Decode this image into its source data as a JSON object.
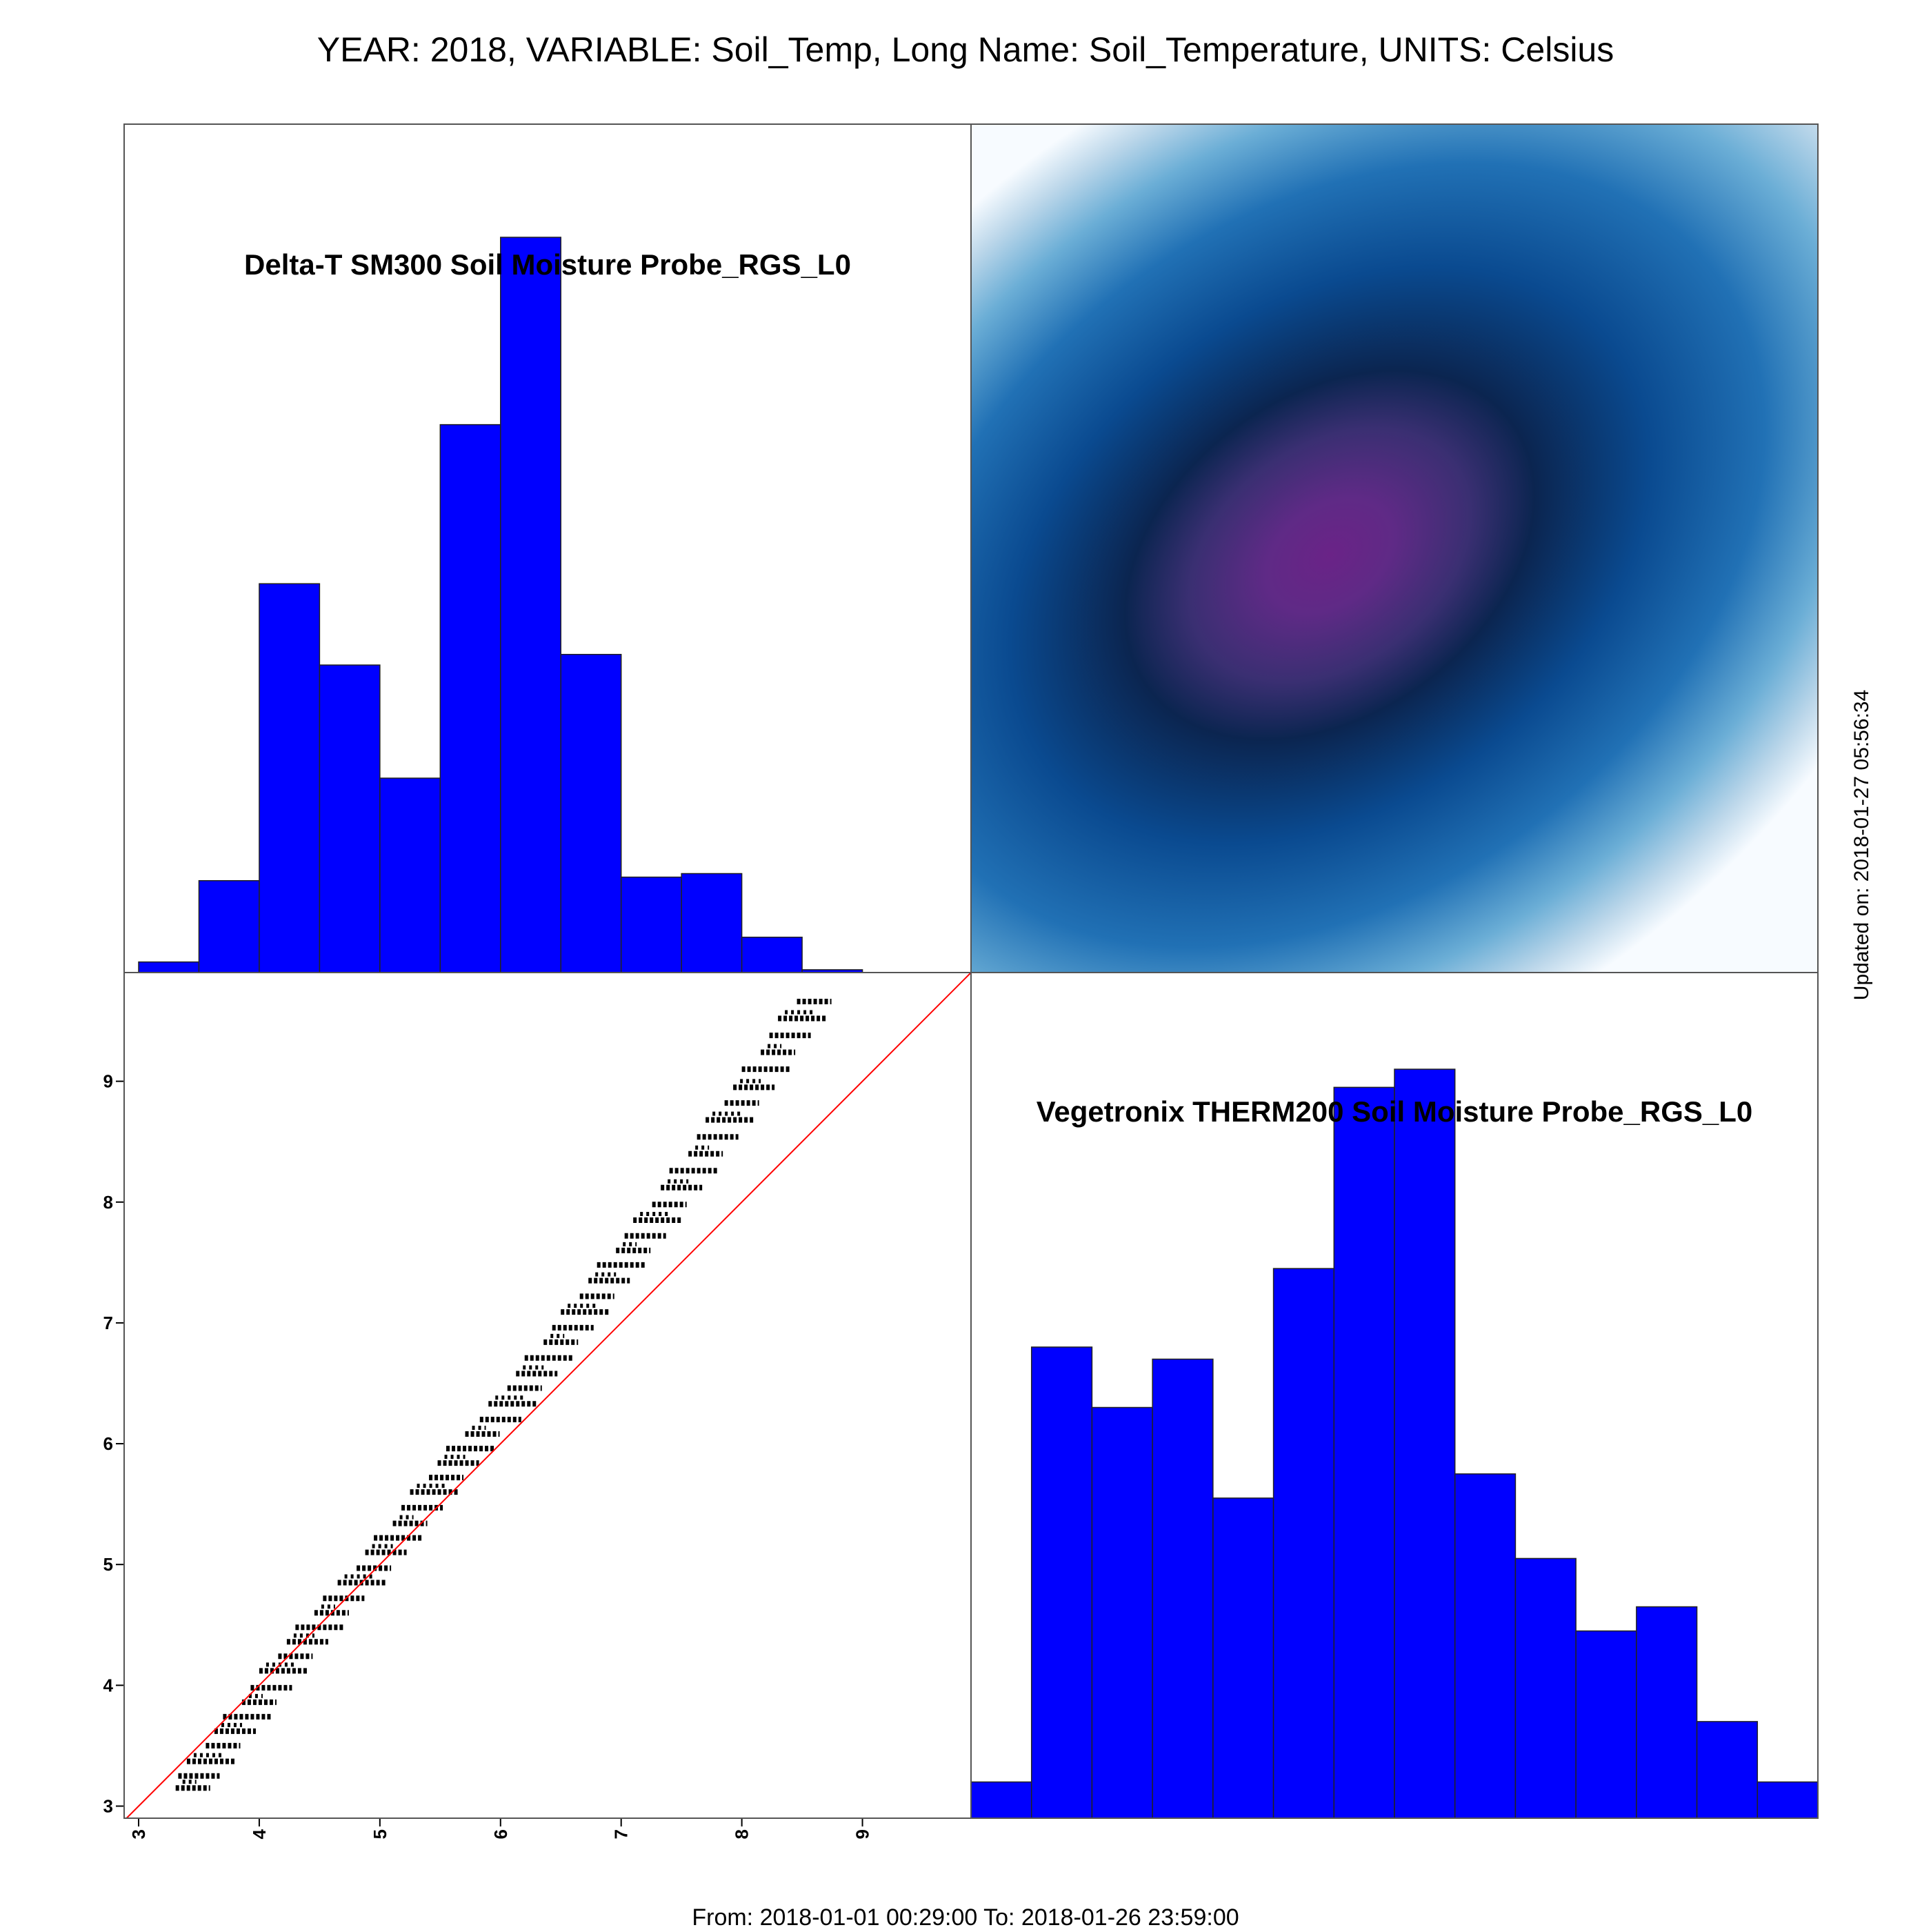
{
  "title": "YEAR: 2018, VARIABLE: Soil_Temp, Long Name: Soil_Temperature, UNITS: Celsius",
  "footer": "From: 2018-01-01 00:29:00 To: 2018-01-26 23:59:00",
  "updated": "Updated on: 2018-01-27 05:56:34",
  "colors": {
    "histogram_fill": "#0000FF",
    "identity_line": "#FF0000",
    "points": "#000000",
    "density_low": "#F7FBFF",
    "density_mid": "#2166AC",
    "density_dark": "#0B2550",
    "density_peak": "#6A2387"
  },
  "chart_data": [
    {
      "type": "bar",
      "panel": "top-left",
      "title": "Delta-T SM300 Soil Moisture Probe_RGS_L0",
      "bin_edges": [
        3.0,
        3.5,
        4.0,
        4.5,
        5.0,
        5.5,
        6.0,
        6.5,
        7.0,
        7.5,
        8.0,
        8.5,
        9.0
      ],
      "values": [
        1.5,
        13,
        55,
        43.5,
        27.5,
        77.5,
        104,
        45,
        13.5,
        14,
        5,
        0.4
      ],
      "ylim": [
        0,
        120
      ],
      "xlim": [
        3.0,
        9.0
      ]
    },
    {
      "type": "heatmap",
      "panel": "top-right",
      "description": "2D kernel density estimate",
      "xlim": [
        3.0,
        10.0
      ],
      "ylim": [
        2.9,
        9.9
      ],
      "peak": [
        6.0,
        6.4
      ],
      "orientation": "positive correlation"
    },
    {
      "type": "scatter",
      "panel": "bottom-left",
      "xlabel": "",
      "ylabel": "",
      "xticks": [
        3,
        4,
        5,
        6,
        7,
        8,
        9
      ],
      "yticks": [
        3,
        4,
        5,
        6,
        7,
        8,
        9
      ],
      "xlim": [
        2.88,
        9.9
      ],
      "ylim": [
        2.9,
        9.9
      ],
      "identity_line": true,
      "clusters": [
        [
          3.45,
          3.15
        ],
        [
          3.5,
          3.25
        ],
        [
          3.6,
          3.37
        ],
        [
          3.7,
          3.5
        ],
        [
          3.8,
          3.62
        ],
        [
          3.9,
          3.74
        ],
        [
          4.0,
          3.86
        ],
        [
          4.1,
          3.98
        ],
        [
          4.2,
          4.12
        ],
        [
          4.3,
          4.24
        ],
        [
          4.4,
          4.36
        ],
        [
          4.5,
          4.48
        ],
        [
          4.6,
          4.6
        ],
        [
          4.7,
          4.72
        ],
        [
          4.85,
          4.85
        ],
        [
          4.95,
          4.97
        ],
        [
          5.05,
          5.1
        ],
        [
          5.15,
          5.22
        ],
        [
          5.25,
          5.34
        ],
        [
          5.35,
          5.47
        ],
        [
          5.45,
          5.6
        ],
        [
          5.55,
          5.72
        ],
        [
          5.65,
          5.84
        ],
        [
          5.75,
          5.96
        ],
        [
          5.85,
          6.08
        ],
        [
          6.0,
          6.2
        ],
        [
          6.1,
          6.33
        ],
        [
          6.2,
          6.46
        ],
        [
          6.3,
          6.58
        ],
        [
          6.4,
          6.71
        ],
        [
          6.5,
          6.84
        ],
        [
          6.6,
          6.96
        ],
        [
          6.7,
          7.09
        ],
        [
          6.8,
          7.22
        ],
        [
          6.9,
          7.35
        ],
        [
          7.0,
          7.48
        ],
        [
          7.1,
          7.6
        ],
        [
          7.2,
          7.72
        ],
        [
          7.3,
          7.85
        ],
        [
          7.4,
          7.98
        ],
        [
          7.5,
          8.12
        ],
        [
          7.6,
          8.26
        ],
        [
          7.7,
          8.4
        ],
        [
          7.8,
          8.54
        ],
        [
          7.9,
          8.68
        ],
        [
          8.0,
          8.82
        ],
        [
          8.1,
          8.95
        ],
        [
          8.2,
          9.1
        ],
        [
          8.3,
          9.24
        ],
        [
          8.4,
          9.38
        ],
        [
          8.5,
          9.52
        ],
        [
          8.6,
          9.66
        ]
      ]
    },
    {
      "type": "bar",
      "panel": "bottom-right",
      "title": "Vegetronix THERM200 Soil Moisture Probe_RGS_L0",
      "bin_edges": [
        3.0,
        3.5,
        4.0,
        4.5,
        5.0,
        5.5,
        6.0,
        6.5,
        7.0,
        7.5,
        8.0,
        8.5,
        9.0,
        9.5,
        10.0
      ],
      "values": [
        6,
        78,
        68,
        76,
        53,
        91,
        121,
        124,
        57,
        43,
        31,
        35,
        16,
        6
      ],
      "ylim": [
        0,
        140
      ],
      "xlim": [
        3.0,
        10.0
      ]
    }
  ]
}
